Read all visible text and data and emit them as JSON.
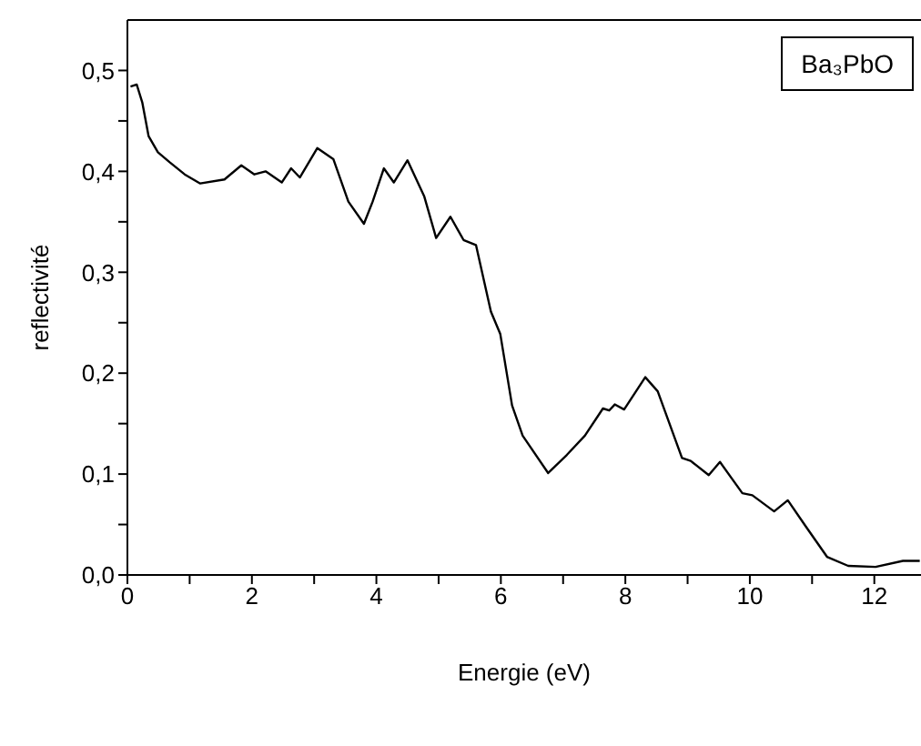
{
  "chart_data": {
    "type": "line",
    "xlabel": "Energie (eV)",
    "ylabel": "reflectivité",
    "legend": "top right",
    "marker": "none",
    "line_style": "solid",
    "grid": false,
    "xlim": [
      0,
      12.75
    ],
    "xticks": [
      0,
      {
        "value": 1,
        "label": null
      },
      2,
      {
        "value": 3,
        "label": null
      },
      4,
      {
        "value": 5,
        "label": null
      },
      6,
      {
        "value": 7,
        "label": null
      },
      8,
      {
        "value": 9,
        "label": null
      },
      10,
      {
        "value": 11,
        "label": null
      },
      12
    ],
    "ylim": [
      0,
      0.55
    ],
    "yticks": [
      {
        "value": 0,
        "label": "0,0"
      },
      {
        "value": 0.05,
        "label": null
      },
      {
        "value": 0.1,
        "label": "0,1"
      },
      {
        "value": 0.15,
        "label": null
      },
      {
        "value": 0.2,
        "label": "0,2"
      },
      {
        "value": 0.25,
        "label": null
      },
      {
        "value": 0.3,
        "label": "0,3"
      },
      {
        "value": 0.35,
        "label": null
      },
      {
        "value": 0.4,
        "label": "0,4"
      },
      {
        "value": 0.45,
        "label": null
      },
      {
        "value": 0.5,
        "label": "0,5"
      }
    ],
    "x": [
      0.05,
      0.15,
      0.24,
      0.34,
      0.49,
      0.68,
      0.92,
      1.17,
      1.56,
      1.83,
      2.04,
      2.22,
      2.48,
      2.63,
      2.77,
      3.05,
      3.31,
      3.55,
      3.8,
      3.94,
      4.12,
      4.28,
      4.5,
      4.77,
      4.96,
      5.19,
      5.4,
      5.6,
      5.84,
      5.99,
      6.18,
      6.35,
      6.76,
      7.06,
      7.35,
      7.64,
      7.74,
      7.83,
      7.98,
      8.32,
      8.52,
      8.91,
      9.05,
      9.34,
      9.52,
      9.88,
      10.04,
      10.39,
      10.61,
      10.9,
      11.24,
      11.58,
      12.02,
      12.46,
      12.73
    ],
    "series": [
      {
        "name": "Ba₃PbO",
        "color": "#000000",
        "values": [
          0.484,
          0.486,
          0.468,
          0.435,
          0.419,
          0.409,
          0.397,
          0.388,
          0.392,
          0.406,
          0.397,
          0.4,
          0.389,
          0.403,
          0.394,
          0.423,
          0.412,
          0.37,
          0.348,
          0.37,
          0.403,
          0.389,
          0.411,
          0.375,
          0.334,
          0.355,
          0.332,
          0.327,
          0.261,
          0.239,
          0.168,
          0.138,
          0.101,
          0.119,
          0.138,
          0.165,
          0.163,
          0.169,
          0.164,
          0.196,
          0.182,
          0.116,
          0.113,
          0.099,
          0.112,
          0.081,
          0.079,
          0.063,
          0.074,
          0.048,
          0.018,
          0.009,
          0.008,
          0.014,
          0.014
        ]
      }
    ]
  }
}
